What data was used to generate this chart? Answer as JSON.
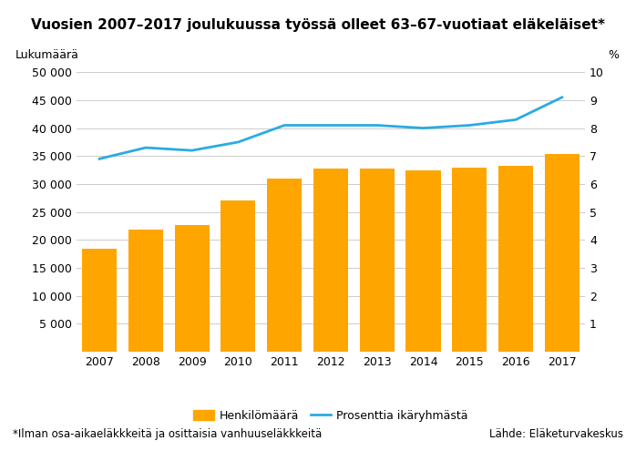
{
  "title": "Vuosien 2007–2017 joulukuussa työssä olleet 63–67-vuotiaat eläkeläiset*",
  "years": [
    2007,
    2008,
    2009,
    2010,
    2011,
    2012,
    2013,
    2014,
    2015,
    2016,
    2017
  ],
  "bar_values": [
    18500,
    21800,
    22700,
    27000,
    31000,
    32800,
    32800,
    32500,
    32900,
    33300,
    35300
  ],
  "line_values": [
    6.9,
    7.3,
    7.2,
    7.5,
    8.1,
    8.1,
    8.1,
    8.0,
    8.1,
    8.3,
    9.1
  ],
  "bar_color": "#FFA500",
  "line_color": "#29ABE2",
  "ylabel_left": "Lukumäärä",
  "ylabel_right": "%",
  "ylim_left": [
    0,
    50000
  ],
  "ylim_right": [
    0,
    10
  ],
  "yticks_left": [
    0,
    5000,
    10000,
    15000,
    20000,
    25000,
    30000,
    35000,
    40000,
    45000,
    50000
  ],
  "yticks_left_labels": [
    "",
    "5 000",
    "10 000",
    "15 000",
    "20 000",
    "25 000",
    "30 000",
    "35 000",
    "40 000",
    "45 000",
    "50 000"
  ],
  "yticks_right": [
    0,
    1,
    2,
    3,
    4,
    5,
    6,
    7,
    8,
    9,
    10
  ],
  "yticks_right_labels": [
    "",
    "1",
    "2",
    "3",
    "4",
    "5",
    "6",
    "7",
    "8",
    "9",
    "10"
  ],
  "legend_bar_label": "Henkilömäärä",
  "legend_line_label": "Prosenttia ikäryhmästä",
  "footnote": "*Ilman osa-aikaeläkkkeitä ja osittaisia vanhuuseläkkkeitä",
  "source": "Lähde: Eläketurvakeskus",
  "background_color": "#FFFFFF",
  "grid_color": "#CCCCCC",
  "title_fontsize": 11,
  "tick_fontsize": 9,
  "legend_fontsize": 9,
  "footnote_fontsize": 8.5
}
